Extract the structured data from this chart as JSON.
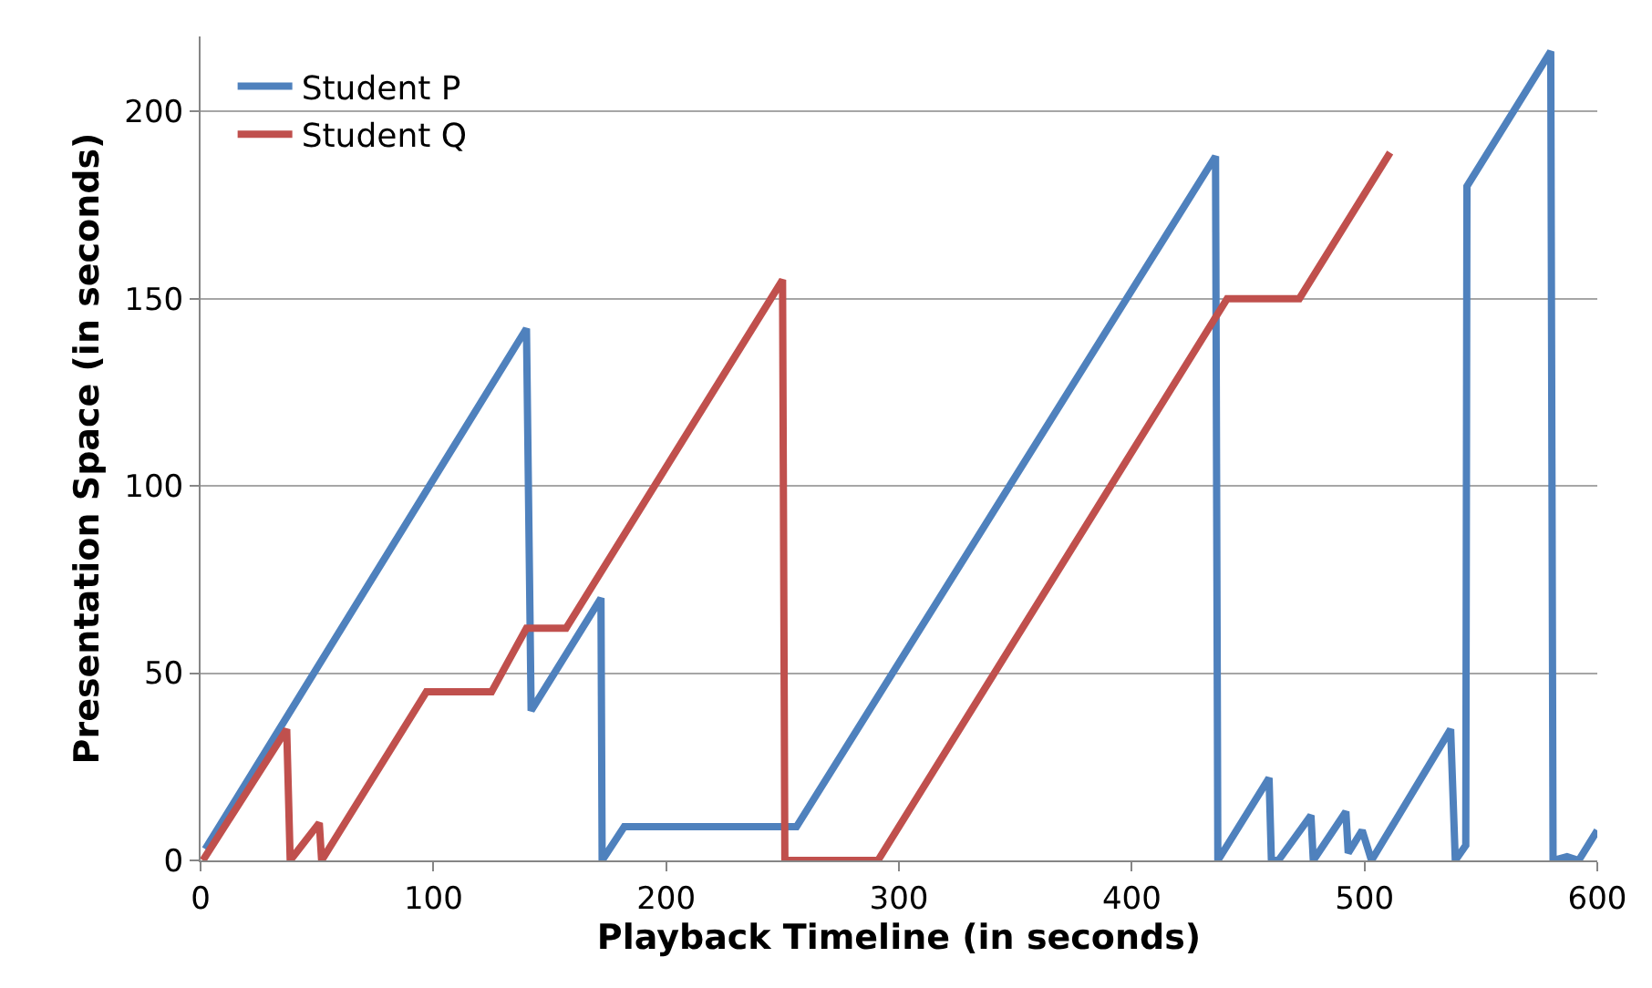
{
  "chart_data": {
    "type": "line",
    "xlabel": "Playback Timeline (in seconds)",
    "ylabel": "Presentation Space (in seconds)",
    "xlim": [
      0,
      600
    ],
    "xticks": [
      0,
      100,
      200,
      300,
      400,
      500,
      600
    ],
    "ylim": [
      0,
      220
    ],
    "yticks": [
      0,
      50,
      100,
      150,
      200
    ],
    "grid": "y",
    "legend": "top left",
    "marker": "none",
    "line_style": "solid",
    "series": [
      {
        "name": "Student P",
        "color": "#4f81bd",
        "x": [
          2,
          140,
          142,
          172,
          172.5,
          182,
          256,
          436,
          437,
          459,
          460,
          463,
          477,
          478,
          492,
          493,
          499,
          503,
          537,
          539,
          543.5,
          544,
          580,
          581,
          587,
          592,
          600
        ],
        "values": [
          3,
          142,
          40,
          70,
          0,
          9,
          9,
          188,
          0,
          22,
          0,
          0,
          12,
          0,
          13,
          2,
          8,
          0,
          35,
          0,
          4,
          180,
          216,
          0,
          1,
          0,
          8
        ]
      },
      {
        "name": "Student Q",
        "color": "#c0504d",
        "x": [
          1,
          37,
          38.5,
          51,
          52,
          97,
          125,
          140,
          157,
          250,
          251,
          291,
          441,
          472,
          511
        ],
        "values": [
          0,
          35,
          0,
          10,
          0,
          45,
          45,
          62,
          62,
          155,
          0,
          0,
          150,
          150,
          189
        ]
      }
    ]
  }
}
